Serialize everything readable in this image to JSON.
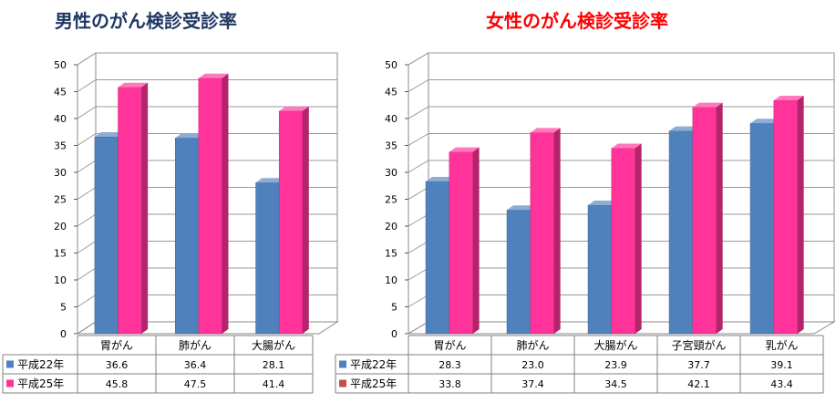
{
  "chart_data": [
    {
      "type": "bar",
      "title": "男性のがん検診受診率",
      "title_color": "#1F3864",
      "categories": [
        "胃がん",
        "肺がん",
        "大腸がん"
      ],
      "series": [
        {
          "name": "平成22年",
          "color": "#4F81BD",
          "values": [
            36.6,
            36.4,
            28.1
          ]
        },
        {
          "name": "平成25年",
          "color": "#FF3399",
          "values": [
            45.8,
            47.5,
            41.4
          ]
        }
      ],
      "ylim": [
        0,
        50
      ],
      "yticks": [
        0,
        5,
        10,
        15,
        20,
        25,
        30,
        35,
        40,
        45,
        50
      ],
      "grid": true,
      "data_table": true,
      "style": "3d-clustered-column"
    },
    {
      "type": "bar",
      "title": "女性のがん検診受診率",
      "title_color": "#FF0000",
      "categories": [
        "胃がん",
        "肺がん",
        "大腸がん",
        "子宮頸がん",
        "乳がん"
      ],
      "series": [
        {
          "name": "平成22年",
          "color": "#4F81BD",
          "values": [
            28.3,
            23.0,
            23.9,
            37.7,
            39.1
          ]
        },
        {
          "name": "平成25年",
          "color": "#FF3399",
          "legend_color": "#C0504D",
          "values": [
            33.8,
            37.4,
            34.5,
            42.1,
            43.4
          ]
        }
      ],
      "ylim": [
        0,
        50
      ],
      "yticks": [
        0,
        5,
        10,
        15,
        20,
        25,
        30,
        35,
        40,
        45,
        50
      ],
      "grid": true,
      "data_table": true,
      "style": "3d-clustered-column"
    }
  ]
}
